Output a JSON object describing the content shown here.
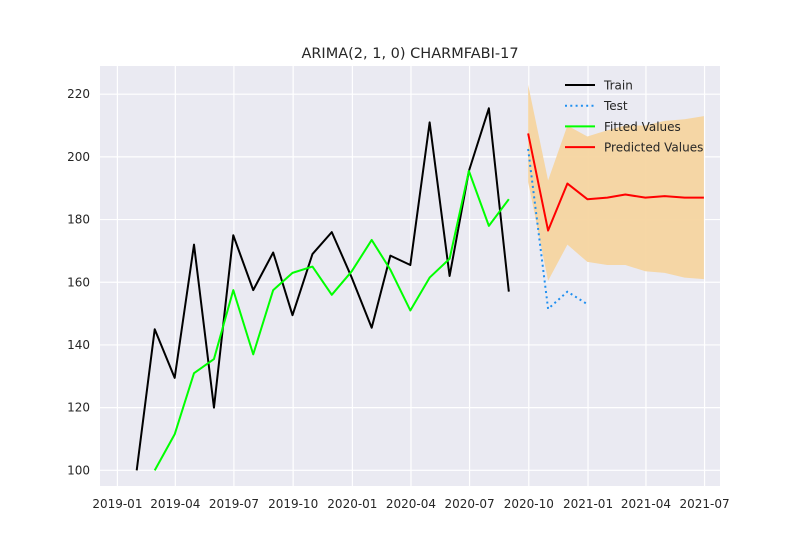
{
  "chart_data": {
    "type": "line",
    "title": "ARIMA(2, 1, 0) CHARMFABI-17",
    "xlabel": "",
    "ylabel": "",
    "x_axis": {
      "type": "date",
      "range": [
        "2018-12-05",
        "2021-07-25"
      ],
      "ticks": [
        "2019-01-01",
        "2019-04-01",
        "2019-07-01",
        "2019-10-01",
        "2020-01-01",
        "2020-04-01",
        "2020-07-01",
        "2020-10-01",
        "2021-01-01",
        "2021-04-01",
        "2021-07-01"
      ],
      "tick_labels": [
        "2019-01",
        "2019-04",
        "2019-07",
        "2019-10",
        "2020-01",
        "2020-04",
        "2020-07",
        "2020-10",
        "2021-01",
        "2021-04",
        "2021-07"
      ]
    },
    "y_axis": {
      "range": [
        95,
        229
      ],
      "ticks": [
        100,
        120,
        140,
        160,
        180,
        200,
        220
      ],
      "tick_labels": [
        "100",
        "120",
        "140",
        "160",
        "180",
        "200",
        "220"
      ]
    },
    "grid": true,
    "legend_position": "top-right",
    "series": [
      {
        "name": "Train",
        "color": "#000000",
        "style": "solid",
        "x": [
          "2019-01-31",
          "2019-02-28",
          "2019-03-31",
          "2019-04-30",
          "2019-05-31",
          "2019-06-30",
          "2019-07-31",
          "2019-08-31",
          "2019-09-30",
          "2019-10-31",
          "2019-11-30",
          "2019-12-31",
          "2020-01-31",
          "2020-02-29",
          "2020-03-31",
          "2020-04-30",
          "2020-05-31",
          "2020-06-30",
          "2020-07-31",
          "2020-08-31"
        ],
        "y": [
          100,
          145,
          129.5,
          172,
          120,
          175,
          157.5,
          169.5,
          149.5,
          169,
          176,
          161.5,
          145.5,
          168.5,
          165.5,
          211,
          162,
          195.5,
          215.5,
          157
        ]
      },
      {
        "name": "Test",
        "color": "#1f8ff0",
        "style": "dotted",
        "x": [
          "2020-09-30",
          "2020-10-31",
          "2020-11-30",
          "2020-12-31"
        ],
        "y": [
          202.5,
          151.5,
          157,
          153
        ]
      },
      {
        "name": "Fitted Values",
        "color": "#00ff00",
        "style": "solid",
        "x": [
          "2019-02-28",
          "2019-03-31",
          "2019-04-30",
          "2019-05-31",
          "2019-06-30",
          "2019-07-31",
          "2019-08-31",
          "2019-09-30",
          "2019-10-31",
          "2019-11-30",
          "2019-12-31",
          "2020-01-31",
          "2020-02-29",
          "2020-03-31",
          "2020-04-30",
          "2020-05-31",
          "2020-06-30",
          "2020-07-31",
          "2020-08-31"
        ],
        "y": [
          100,
          111.5,
          131,
          135.5,
          157.5,
          137,
          157.5,
          163,
          165,
          156,
          163.5,
          173.5,
          164,
          151,
          161.5,
          167.5,
          195.5,
          178,
          186.5
        ]
      },
      {
        "name": "Predicted Values",
        "color": "#ff0000",
        "style": "solid",
        "x": [
          "2020-09-30",
          "2020-10-31",
          "2020-11-30",
          "2020-12-31",
          "2021-01-31",
          "2021-02-28",
          "2021-03-31",
          "2021-04-30",
          "2021-05-31",
          "2021-06-30"
        ],
        "y": [
          207.5,
          176.5,
          191.5,
          186.5,
          187,
          188,
          187,
          187.5,
          187,
          187
        ]
      }
    ],
    "confidence_band": {
      "color": "#f5d5a0",
      "x": [
        "2020-09-30",
        "2020-10-31",
        "2020-11-30",
        "2020-12-31",
        "2021-01-31",
        "2021-02-28",
        "2021-03-31",
        "2021-04-30",
        "2021-05-31",
        "2021-06-30"
      ],
      "upper": [
        223,
        192.5,
        210,
        206.5,
        208.5,
        210,
        210,
        211.5,
        212,
        213
      ],
      "lower": [
        192,
        160.5,
        172,
        166.5,
        165.5,
        165.5,
        163.5,
        163,
        161.5,
        161
      ]
    }
  }
}
